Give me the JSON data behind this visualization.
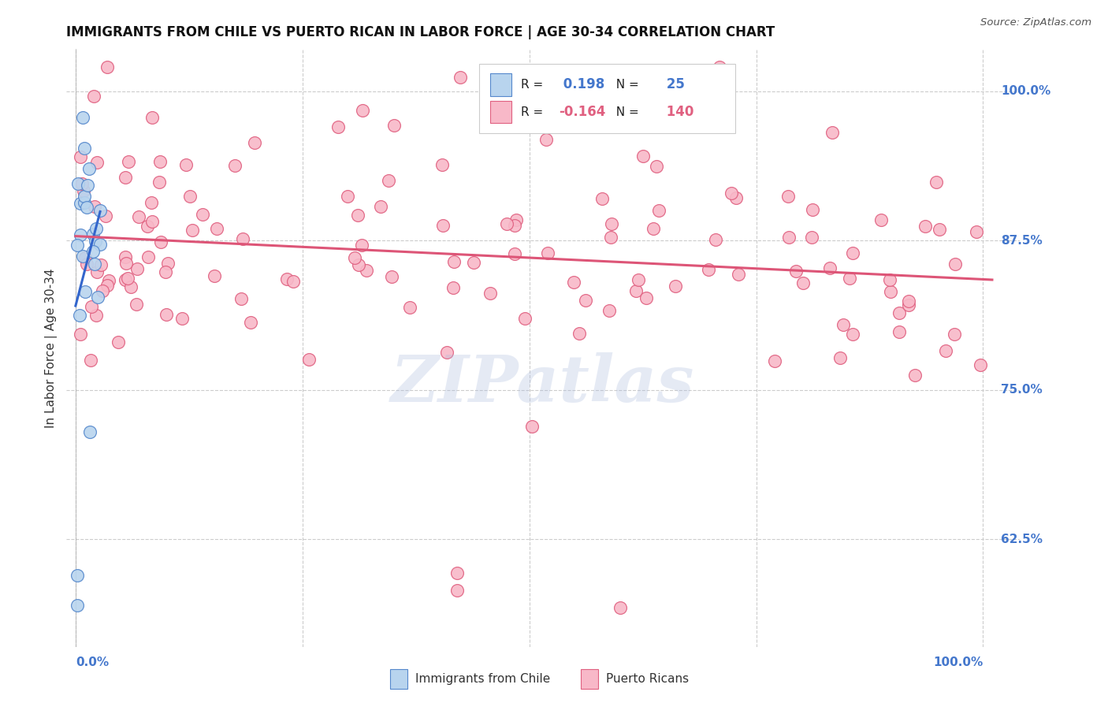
{
  "title": "IMMIGRANTS FROM CHILE VS PUERTO RICAN IN LABOR FORCE | AGE 30-34 CORRELATION CHART",
  "source": "Source: ZipAtlas.com",
  "ylabel": "In Labor Force | Age 30-34",
  "R_blue": 0.198,
  "N_blue": 25,
  "R_pink": -0.164,
  "N_pink": 140,
  "blue_fill": "#b8d4ee",
  "blue_edge": "#5588cc",
  "pink_fill": "#f8b8c8",
  "pink_edge": "#e06080",
  "blue_line": "#3366cc",
  "pink_line": "#dd5577",
  "watermark": "ZIPatlas",
  "legend_label_blue": "Immigrants from Chile",
  "legend_label_pink": "Puerto Ricans",
  "xlim": [
    -0.01,
    1.04
  ],
  "ylim": [
    0.535,
    1.035
  ],
  "ytick_vals": [
    0.625,
    0.75,
    0.875,
    1.0
  ],
  "ytick_labels": [
    "62.5%",
    "75.0%",
    "87.5%",
    "100.0%"
  ],
  "xtick_vals": [
    0.0,
    0.25,
    0.5,
    0.75,
    1.0
  ],
  "background_color": "#ffffff",
  "grid_color": "#cccccc",
  "label_color": "#4477cc"
}
